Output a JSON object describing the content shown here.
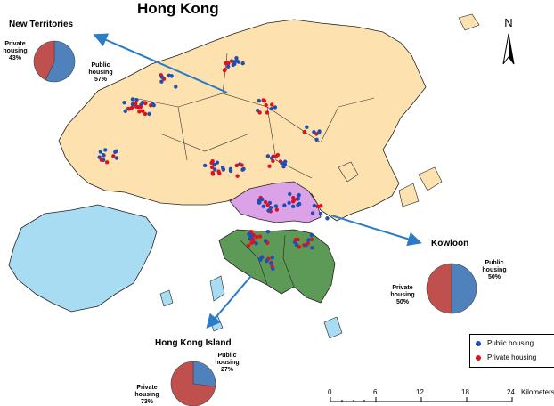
{
  "title": "Hong Kong",
  "colors": {
    "new_territories": "#fde2b0",
    "kowloon": "#dca2e8",
    "hong_kong_island": "#5e9a57",
    "lantau": "#a8dcf2",
    "public": "#1f4fb4",
    "private": "#e01020",
    "pie_public": "#4f81bd",
    "pie_private": "#c0504d",
    "arrow": "#2a7cc7"
  },
  "regions": [
    {
      "name": "New Territories",
      "public_label": "Public\nhousing",
      "public_pct": "57%",
      "private_label": "Private\nhousing",
      "private_pct": "43%",
      "public_share": 0.57
    },
    {
      "name": "Kowloon",
      "public_label": "Public\nhousing",
      "public_pct": "50%",
      "private_label": "Private\nhousing",
      "private_pct": "50%",
      "public_share": 0.5
    },
    {
      "name": "Hong Kong Island",
      "public_label": "Public\nhousing",
      "public_pct": "27%",
      "private_label": "Private\nhousing",
      "private_pct": "73%",
      "public_share": 0.27
    }
  ],
  "legend": {
    "public": "Public housing",
    "private": "Private housing"
  },
  "north_label": "N",
  "scale": {
    "ticks": [
      "0",
      "6",
      "12",
      "18",
      "24"
    ],
    "unit": "Kilometers"
  }
}
